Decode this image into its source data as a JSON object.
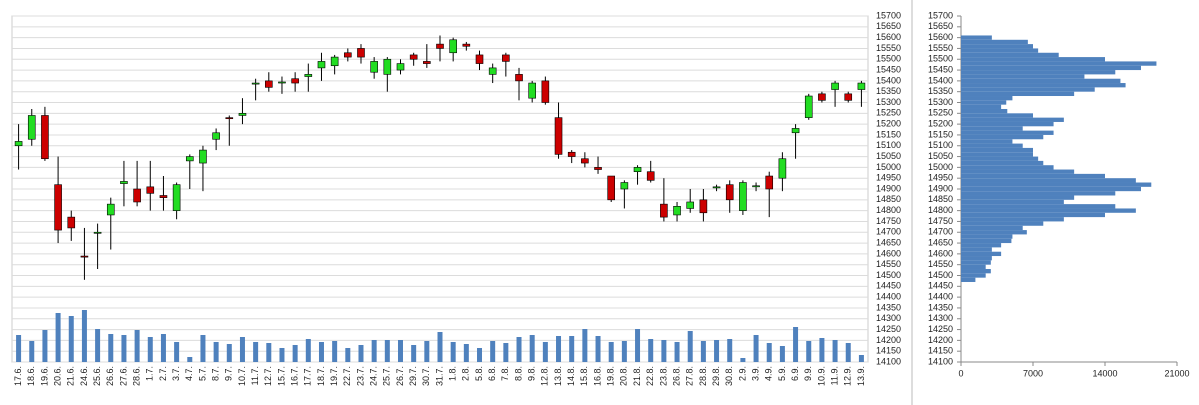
{
  "chart_data": [
    {
      "type": "candlestick",
      "categories": [
        "17.6.",
        "18.6.",
        "19.6.",
        "20.6.",
        "21.6.",
        "24.6.",
        "25.6.",
        "26.6.",
        "27.6.",
        "28.6.",
        "1.7.",
        "2.7.",
        "3.7.",
        "4.7.",
        "5.7.",
        "8.7.",
        "9.7.",
        "10.7.",
        "11.7.",
        "12.7.",
        "15.7.",
        "16.7.",
        "17.7.",
        "18.7.",
        "19.7.",
        "22.7.",
        "23.7.",
        "24.7.",
        "25.7.",
        "26.7.",
        "29.7.",
        "30.7.",
        "31.7.",
        "1.8.",
        "2.8.",
        "5.8.",
        "6.8.",
        "7.8.",
        "8.8.",
        "9.8.",
        "12.8.",
        "13.8.",
        "14.8.",
        "15.8.",
        "16.8.",
        "19.8.",
        "20.8.",
        "21.8.",
        "22.8.",
        "23.8.",
        "26.8.",
        "27.8.",
        "28.8.",
        "29.8.",
        "30.8.",
        "2.9.",
        "3.9.",
        "4.9.",
        "5.9.",
        "6.9.",
        "9.9.",
        "10.9.",
        "11.9.",
        "12.9.",
        "13.9."
      ],
      "open": [
        15100,
        15130,
        15240,
        14920,
        14770,
        14590,
        14695,
        14780,
        14925,
        14900,
        14910,
        14870,
        14800,
        15030,
        15020,
        15130,
        15230,
        15240,
        15385,
        15400,
        15390,
        15410,
        15420,
        15460,
        15470,
        15530,
        15550,
        15440,
        15430,
        15450,
        15520,
        15490,
        15570,
        15530,
        15570,
        15520,
        15430,
        15520,
        15430,
        15320,
        15400,
        15230,
        15070,
        15040,
        15000,
        14960,
        14900,
        14980,
        14980,
        14830,
        14780,
        14810,
        14850,
        14905,
        14920,
        14800,
        14910,
        14960,
        14950,
        15160,
        15230,
        15340,
        15360,
        15340,
        15360
      ],
      "high": [
        15200,
        15270,
        15280,
        15050,
        14800,
        14720,
        14740,
        14860,
        15030,
        15030,
        15030,
        14960,
        14930,
        15060,
        15100,
        15180,
        15240,
        15320,
        15410,
        15440,
        15420,
        15440,
        15480,
        15530,
        15520,
        15550,
        15570,
        15510,
        15510,
        15500,
        15530,
        15570,
        15610,
        15600,
        15580,
        15540,
        15480,
        15530,
        15460,
        15400,
        15420,
        15300,
        15080,
        15070,
        15050,
        14960,
        14940,
        15010,
        15030,
        14950,
        14840,
        14900,
        14900,
        14920,
        14940,
        14940,
        14930,
        14980,
        15070,
        15200,
        15340,
        15350,
        15400,
        15350,
        15400
      ],
      "low": [
        14990,
        15100,
        15030,
        14650,
        14660,
        14480,
        14530,
        14620,
        14820,
        14820,
        14800,
        14800,
        14760,
        14900,
        14890,
        15080,
        15100,
        15200,
        15310,
        15350,
        15340,
        15350,
        15350,
        15400,
        15430,
        15490,
        15480,
        15410,
        15350,
        15430,
        15470,
        15460,
        15490,
        15490,
        15540,
        15450,
        15390,
        15420,
        15310,
        15300,
        15290,
        15040,
        15020,
        15000,
        14970,
        14840,
        14810,
        14920,
        14930,
        14750,
        14750,
        14790,
        14750,
        14890,
        14790,
        14780,
        14890,
        14770,
        14890,
        15040,
        15220,
        15300,
        15280,
        15300,
        15280
      ],
      "close": [
        15120,
        15240,
        15040,
        14710,
        14720,
        14585,
        14700,
        14830,
        14935,
        14840,
        14880,
        14860,
        14920,
        15050,
        15080,
        15160,
        15225,
        15250,
        15390,
        15370,
        15395,
        15390,
        15430,
        15490,
        15510,
        15510,
        15510,
        15490,
        15500,
        15480,
        15500,
        15480,
        15550,
        15590,
        15560,
        15480,
        15460,
        15490,
        15400,
        15390,
        15300,
        15060,
        15050,
        15020,
        14990,
        14850,
        14930,
        15000,
        14940,
        14770,
        14820,
        14840,
        14790,
        14910,
        14850,
        14930,
        14915,
        14900,
        15040,
        15180,
        15330,
        15310,
        15390,
        15310,
        15390
      ],
      "volume": [
        27,
        21,
        32,
        49,
        46,
        52,
        33,
        28,
        27,
        32,
        25,
        28,
        20,
        5,
        27,
        20,
        18,
        25,
        20,
        19,
        14,
        17,
        23,
        20,
        21,
        14,
        17,
        22,
        22,
        22,
        17,
        21,
        30,
        20,
        18,
        14,
        21,
        19,
        25,
        27,
        20,
        26,
        26,
        33,
        26,
        20,
        21,
        33,
        23,
        22,
        20,
        31,
        21,
        22,
        23,
        4,
        27,
        19,
        16,
        35,
        21,
        24,
        22,
        19,
        7
      ],
      "up_color": "#22dd22",
      "down_color": "#cc0000",
      "volume_color": "#4f81bd",
      "ylim": [
        14100,
        15700
      ],
      "yticks": [
        14100,
        14150,
        14200,
        14250,
        14300,
        14350,
        14400,
        14450,
        14500,
        14550,
        14600,
        14650,
        14700,
        14750,
        14800,
        14850,
        14900,
        14950,
        15000,
        15050,
        15100,
        15150,
        15200,
        15250,
        15300,
        15350,
        15400,
        15450,
        15500,
        15550,
        15600,
        15650,
        15700
      ],
      "grid": true
    },
    {
      "type": "barh",
      "levels": [
        14480,
        14500,
        14520,
        14540,
        14560,
        14580,
        14600,
        14620,
        14640,
        14660,
        14680,
        14700,
        14720,
        14740,
        14760,
        14780,
        14800,
        14820,
        14840,
        14860,
        14880,
        14900,
        14920,
        14940,
        14960,
        14980,
        15000,
        15020,
        15040,
        15060,
        15080,
        15100,
        15120,
        15140,
        15160,
        15180,
        15200,
        15220,
        15240,
        15260,
        15280,
        15300,
        15320,
        15340,
        15360,
        15380,
        15400,
        15420,
        15440,
        15460,
        15480,
        15500,
        15520,
        15540,
        15560,
        15580,
        15600
      ],
      "values": [
        1400,
        2400,
        2900,
        2400,
        2900,
        3000,
        3900,
        3000,
        3900,
        4900,
        5000,
        6400,
        6000,
        8000,
        10000,
        14000,
        17000,
        15000,
        10000,
        11000,
        15000,
        17500,
        18500,
        17000,
        14000,
        11000,
        9000,
        8000,
        7500,
        7000,
        7000,
        6000,
        5000,
        8000,
        9000,
        6000,
        9000,
        10000,
        7000,
        4500,
        3900,
        4400,
        5000,
        11000,
        13000,
        16000,
        15500,
        12000,
        15000,
        17500,
        19000,
        14000,
        9500,
        7500,
        7000,
        6500,
        3000
      ],
      "color": "#4f81bd",
      "xlim": [
        0,
        21000
      ],
      "xticks": [
        0,
        7000,
        14000,
        21000
      ],
      "ylim": [
        14100,
        15700
      ],
      "yticks": [
        14100,
        14150,
        14200,
        14250,
        14300,
        14350,
        14400,
        14450,
        14500,
        14550,
        14600,
        14650,
        14700,
        14750,
        14800,
        14850,
        14900,
        14950,
        15000,
        15050,
        15100,
        15150,
        15200,
        15250,
        15300,
        15350,
        15400,
        15450,
        15500,
        15550,
        15600,
        15650,
        15700
      ]
    }
  ]
}
